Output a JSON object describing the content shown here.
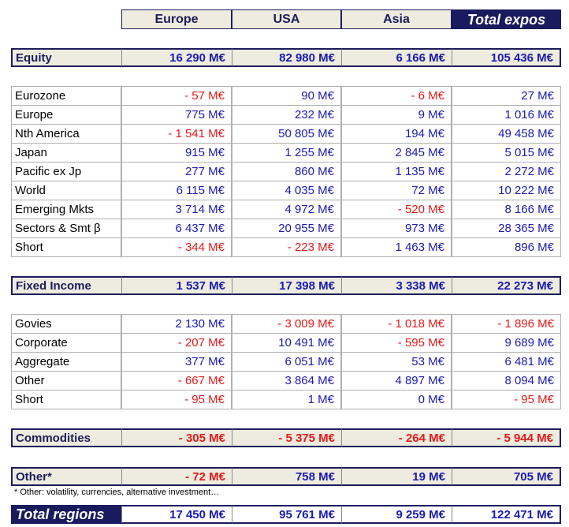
{
  "header": [
    "Europe",
    "USA",
    "Asia",
    "Total expos"
  ],
  "sections": [
    {
      "title": {
        "label": "Equity",
        "values": [
          "16 290 M€",
          "82 980 M€",
          "6 166 M€",
          "105 436 M€"
        ]
      },
      "rows": [
        {
          "label": "Eurozone",
          "values": [
            "- 57 M€",
            "90 M€",
            "- 6 M€",
            "27 M€"
          ]
        },
        {
          "label": "Europe",
          "values": [
            "775 M€",
            "232 M€",
            "9 M€",
            "1 016 M€"
          ]
        },
        {
          "label": "Nth America",
          "values": [
            "- 1 541 M€",
            "50 805 M€",
            "194 M€",
            "49 458 M€"
          ]
        },
        {
          "label": "Japan",
          "values": [
            "915 M€",
            "1 255 M€",
            "2 845 M€",
            "5 015 M€"
          ]
        },
        {
          "label": "Pacific ex Jp",
          "values": [
            "277 M€",
            "860 M€",
            "1 135 M€",
            "2 272 M€"
          ]
        },
        {
          "label": "World",
          "values": [
            "6 115 M€",
            "4 035 M€",
            "72 M€",
            "10 222 M€"
          ]
        },
        {
          "label": "Emerging Mkts",
          "values": [
            "3 714 M€",
            "4 972 M€",
            "- 520 M€",
            "8 166 M€"
          ]
        },
        {
          "label": "Sectors & Smt β",
          "values": [
            "6 437 M€",
            "20 955 M€",
            "973 M€",
            "28 365 M€"
          ]
        },
        {
          "label": "Short",
          "values": [
            "- 344 M€",
            "- 223 M€",
            "1 463 M€",
            "896 M€"
          ]
        }
      ]
    },
    {
      "title": {
        "label": "Fixed Income",
        "values": [
          "1 537 M€",
          "17 398 M€",
          "3 338 M€",
          "22 273 M€"
        ]
      },
      "rows": [
        {
          "label": "Govies",
          "values": [
            "2 130 M€",
            "- 3 009 M€",
            "- 1 018 M€",
            "- 1 896 M€"
          ]
        },
        {
          "label": "Corporate",
          "values": [
            "- 207 M€",
            "10 491 M€",
            "- 595 M€",
            "9 689 M€"
          ]
        },
        {
          "label": "Aggregate",
          "values": [
            "377 M€",
            "6 051 M€",
            "53 M€",
            "6 481 M€"
          ]
        },
        {
          "label": "Other",
          "values": [
            "- 667 M€",
            "3 864 M€",
            "4 897 M€",
            "8 094 M€"
          ]
        },
        {
          "label": "Short",
          "values": [
            "- 95 M€",
            "1 M€",
            "0 M€",
            "- 95 M€"
          ]
        }
      ]
    },
    {
      "title": {
        "label": "Commodities",
        "values": [
          "- 305 M€",
          "- 5 375 M€",
          "- 264 M€",
          "- 5 944 M€"
        ]
      },
      "rows": []
    },
    {
      "title": {
        "label": "Other*",
        "values": [
          "- 72 M€",
          "758 M€",
          "19 M€",
          "705 M€"
        ]
      },
      "rows": []
    }
  ],
  "footnote": "* Other: volatility, currencies, alternative investment…",
  "total": {
    "label": "Total regions",
    "values": [
      "17 450 M€",
      "95 761 M€",
      "9 259 M€",
      "122 471 M€"
    ]
  }
}
